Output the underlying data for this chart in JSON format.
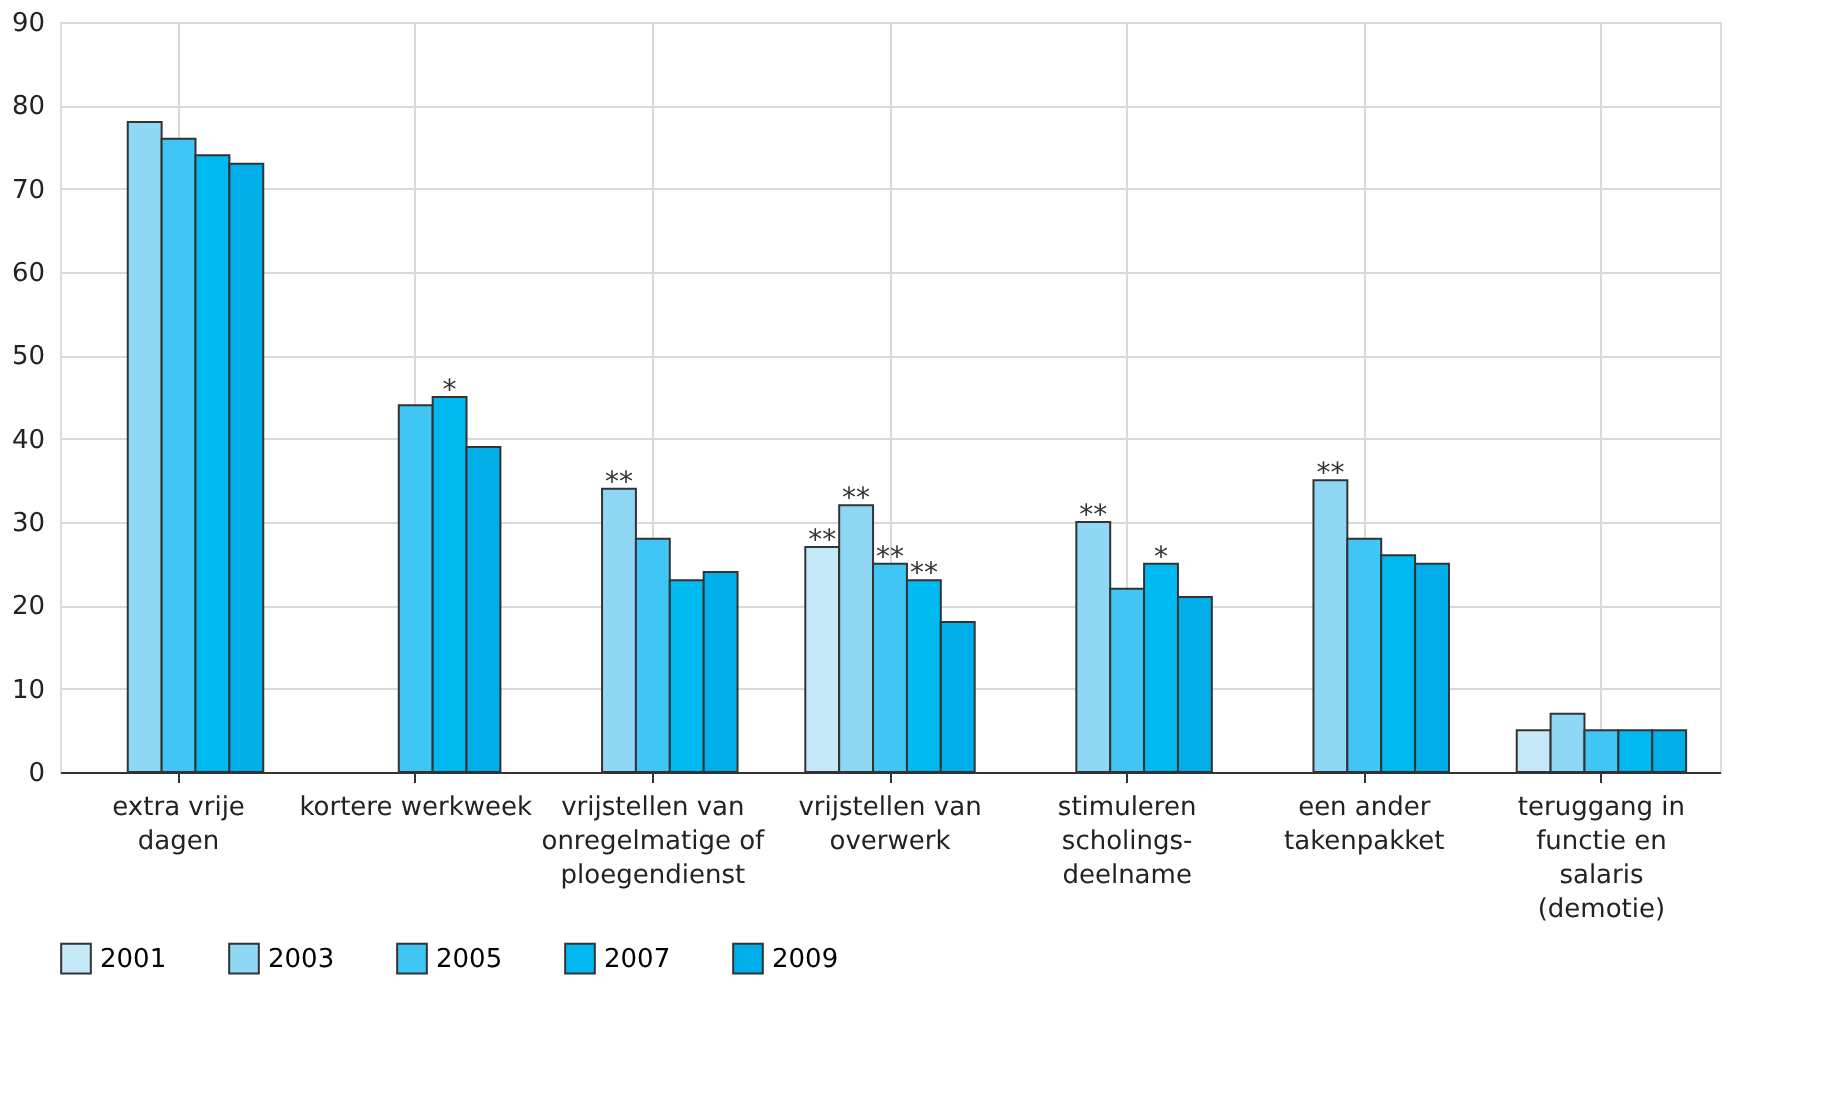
{
  "chart_data": {
    "type": "bar",
    "categories": [
      "extra vrije dagen",
      "kortere werkweek",
      "vrijstellen van onregelmatige of ploegendienst",
      "vrijstellen van overwerk",
      "stimuleren scholings-deelname",
      "een ander takenpakket",
      "teruggang in functie en salaris (demotie)"
    ],
    "series": [
      {
        "name": "2001",
        "color": "#c6e9f9",
        "values": [
          null,
          null,
          null,
          27,
          null,
          null,
          5
        ],
        "value_labels": [
          null,
          null,
          null,
          "**",
          null,
          null,
          null
        ]
      },
      {
        "name": "2003",
        "color": "#8ed8f6",
        "values": [
          78,
          null,
          34,
          32,
          30,
          35,
          7
        ],
        "value_labels": [
          null,
          null,
          "**",
          "**",
          "**",
          "**",
          null
        ]
      },
      {
        "name": "2005",
        "color": "#40c6f4",
        "values": [
          76,
          44,
          28,
          25,
          22,
          28,
          5
        ],
        "value_labels": [
          null,
          null,
          null,
          "**",
          null,
          null,
          null
        ]
      },
      {
        "name": "2007",
        "color": "#00b9f1",
        "values": [
          74,
          45,
          23,
          23,
          25,
          26,
          5
        ],
        "value_labels": [
          null,
          "*",
          null,
          "**",
          "*",
          null,
          null
        ]
      },
      {
        "name": "2009",
        "color": "#00aeea",
        "values": [
          73,
          39,
          24,
          18,
          21,
          25,
          5
        ]
      }
    ],
    "ylim": [
      0,
      90
    ],
    "yticks": [
      0,
      10,
      20,
      30,
      40,
      50,
      60,
      70,
      80,
      90
    ],
    "grid": true,
    "legend": "bottom left"
  }
}
